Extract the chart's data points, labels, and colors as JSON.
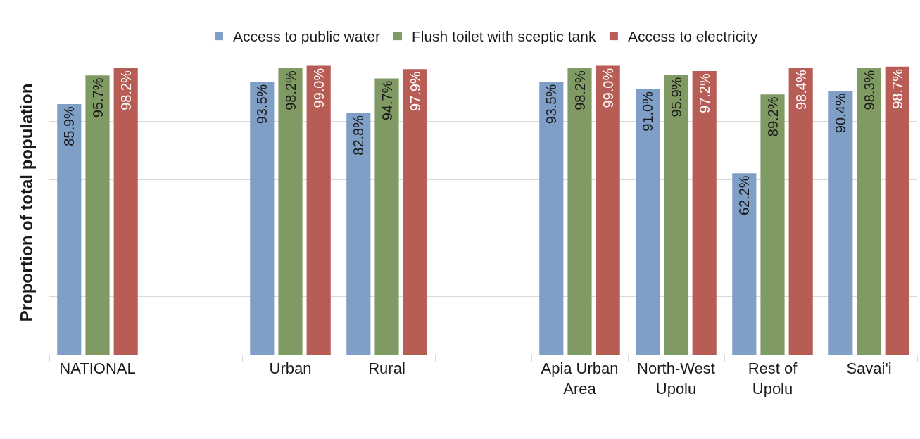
{
  "chart_data": {
    "type": "bar",
    "ylabel": "Proportion of total population",
    "categories": [
      "NATIONAL",
      null,
      "Urban",
      "Rural",
      null,
      "Apia Urban Area",
      "North-West Upolu",
      "Rest of Upolu",
      "Savai'i"
    ],
    "series": [
      {
        "name": "Access to public water",
        "color": "#7f9fc6",
        "values": [
          85.9,
          null,
          93.5,
          82.8,
          null,
          93.5,
          91.0,
          62.2,
          90.4
        ],
        "value_labels": [
          "85.9%",
          null,
          "93.5%",
          "82.8%",
          null,
          "93.5%",
          "91.0%",
          "62.2%",
          "90.4%"
        ]
      },
      {
        "name": "Flush toilet with sceptic tank",
        "color": "#7f9a62",
        "values": [
          95.7,
          null,
          98.2,
          94.7,
          null,
          98.2,
          95.9,
          89.2,
          98.3
        ],
        "value_labels": [
          "95.7%",
          null,
          "98.2%",
          "94.7%",
          null,
          "98.2%",
          "95.9%",
          "89.2%",
          "98.3%"
        ]
      },
      {
        "name": "Access to electricity",
        "color": "#b85c56",
        "values": [
          98.2,
          null,
          99.0,
          97.9,
          null,
          99.0,
          97.2,
          98.4,
          98.7
        ],
        "value_labels": [
          "98.2%",
          null,
          "99.0%",
          "97.9%",
          null,
          "99.0%",
          "97.2%",
          "98.4%",
          "98.7%"
        ]
      }
    ],
    "grid": "y",
    "legend": "top"
  }
}
